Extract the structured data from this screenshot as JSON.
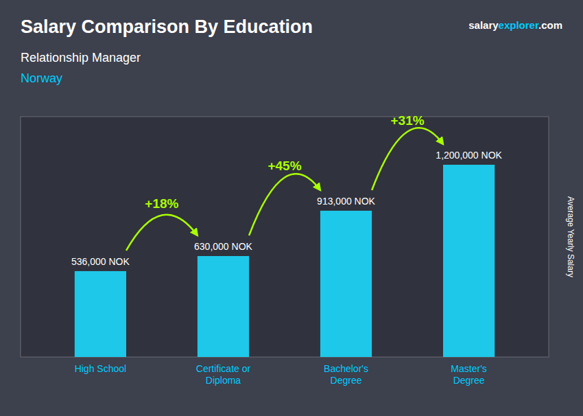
{
  "chart_data": {
    "type": "bar",
    "title": "Salary Comparison By Education",
    "subtitle": "Relationship Manager",
    "country": "Norway",
    "source": [
      "salary",
      "explorer",
      ".com"
    ],
    "ylabel": "Average Yearly Salary",
    "categories": [
      "High School",
      "Certificate or\nDiploma",
      "Bachelor's\nDegree",
      "Master's\nDegree"
    ],
    "values": [
      536000,
      630000,
      913000,
      1200000
    ],
    "value_labels": [
      "536,000 NOK",
      "630,000 NOK",
      "913,000 NOK",
      "1,200,000 NOK"
    ],
    "data_labels": true,
    "annotations": [
      "+18%",
      "+45%",
      "+31%"
    ],
    "color": "#1EC8E8",
    "ylim": [
      0,
      1500000
    ],
    "tick_labels": "x"
  }
}
